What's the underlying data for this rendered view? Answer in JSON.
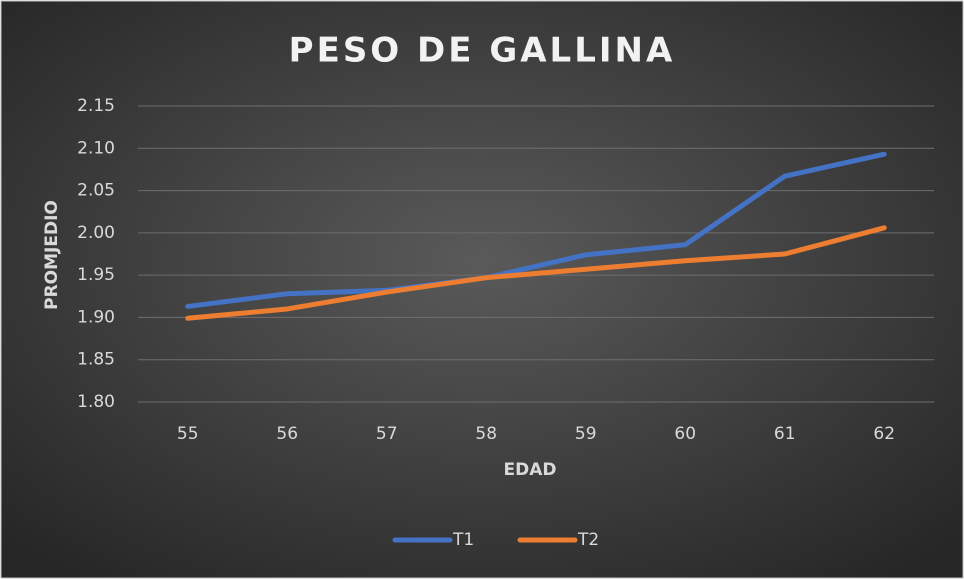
{
  "chart_data": {
    "type": "line",
    "title": "PESO DE GALLINA",
    "x_label": "EDAD",
    "y_label": "PROMJEDIO",
    "categories": [
      "55",
      "56",
      "57",
      "58",
      "59",
      "60",
      "61",
      "62"
    ],
    "series": [
      {
        "name": "T1",
        "color": "#4472c4",
        "values": [
          1.913,
          1.928,
          1.932,
          1.947,
          1.974,
          1.986,
          2.067,
          2.093
        ]
      },
      {
        "name": "T2",
        "color": "#ed7d31",
        "values": [
          1.899,
          1.91,
          1.93,
          1.947,
          1.957,
          1.967,
          1.975,
          2.006
        ]
      }
    ],
    "ylim": [
      1.8,
      2.15
    ],
    "yticks": [
      {
        "value": 1.8,
        "label": "1.80"
      },
      1.85,
      {
        "value": 1.9,
        "label": "1.90"
      },
      1.95,
      {
        "value": 2,
        "label": "2.00"
      },
      2.05,
      {
        "value": 2.1,
        "label": "2.10"
      },
      2.15
    ],
    "grid": true,
    "legend": "bottom"
  }
}
